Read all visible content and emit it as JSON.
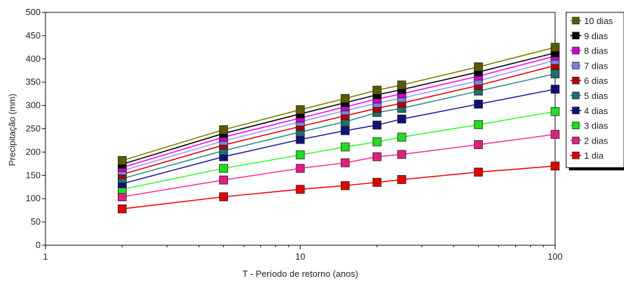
{
  "chart_data": {
    "type": "line",
    "title": "",
    "xlabel": "T - Período de retorno (anos)",
    "ylabel": "Precipitação (mm)",
    "x_scale": "log",
    "xlim": [
      1,
      100
    ],
    "ylim": [
      0,
      500
    ],
    "x_ticks": [
      1,
      10,
      100
    ],
    "y_ticks": [
      0,
      50,
      100,
      150,
      200,
      250,
      300,
      350,
      400,
      450,
      500
    ],
    "grid": false,
    "legend_position": "right",
    "x": [
      2,
      5,
      10,
      15,
      20,
      25,
      50,
      100
    ],
    "series": [
      {
        "name": "10 dias",
        "color": "#808000",
        "marker_color": "#5a5a00",
        "values": [
          182,
          248,
          291,
          315,
          333,
          344,
          383,
          425
        ]
      },
      {
        "name": "9 dias",
        "color": "#000000",
        "marker_color": "#000000",
        "values": [
          174,
          240,
          282,
          306,
          323,
          334,
          372,
          413
        ]
      },
      {
        "name": "8 dias",
        "color": "#ff00ff",
        "marker_color": "#cc00cc",
        "values": [
          167,
          232,
          273,
          297,
          314,
          325,
          363,
          406
        ]
      },
      {
        "name": "7 dias",
        "color": "#9999ff",
        "marker_color": "#8080e0",
        "values": [
          160,
          224,
          265,
          289,
          305,
          316,
          353,
          397
        ]
      },
      {
        "name": "6 dias",
        "color": "#e00000",
        "marker_color": "#b00000",
        "values": [
          152,
          215,
          255,
          278,
          294,
          305,
          343,
          386
        ]
      },
      {
        "name": "5 dias",
        "color": "#2f8f8f",
        "marker_color": "#1f6f6f",
        "values": [
          143,
          203,
          243,
          265,
          285,
          294,
          331,
          368
        ]
      },
      {
        "name": "4 dias",
        "color": "#1e1e9e",
        "marker_color": "#10107a",
        "values": [
          132,
          190,
          227,
          246,
          258,
          271,
          303,
          335
        ]
      },
      {
        "name": "3 dias",
        "color": "#33ff33",
        "marker_color": "#22dd22",
        "values": [
          120,
          165,
          194,
          211,
          222,
          232,
          259,
          287
        ]
      },
      {
        "name": "2 dias",
        "color": "#ff3399",
        "marker_color": "#e0207f",
        "values": [
          104,
          140,
          165,
          177,
          190,
          195,
          216,
          238
        ]
      },
      {
        "name": "1 dia",
        "color": "#ff0000",
        "marker_color": "#e00000",
        "values": [
          78,
          104,
          120,
          128,
          135,
          141,
          157,
          170
        ]
      }
    ]
  }
}
